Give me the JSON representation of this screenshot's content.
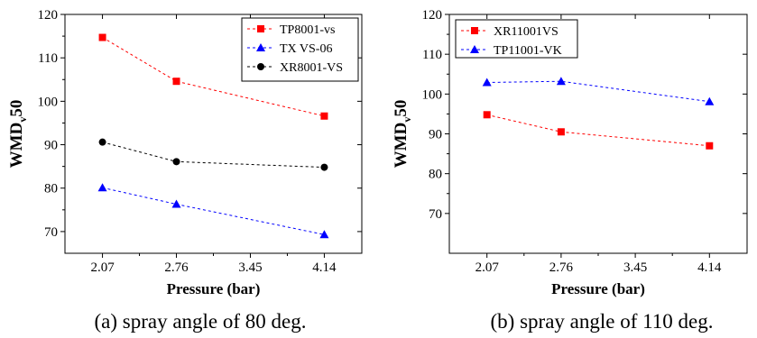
{
  "chart_data": [
    {
      "type": "line",
      "caption": "(a) spray angle of 80 deg.",
      "xlabel": "Pressure (bar)",
      "ylabel_main": "WMD",
      "ylabel_sub": "v",
      "ylabel_tail": "50",
      "xlim": [
        1.72,
        4.49
      ],
      "ylim": [
        65,
        120
      ],
      "x_ticks": [
        2.07,
        2.76,
        3.45,
        4.14
      ],
      "x_tick_labels": [
        "2.07",
        "2.76",
        "3.45",
        "4.14"
      ],
      "y_ticks": [
        70,
        80,
        90,
        100,
        110,
        120
      ],
      "y_tick_labels": [
        "70",
        "80",
        "90",
        "100",
        "110",
        "120"
      ],
      "legend_position": "top-right",
      "grid": false,
      "series": [
        {
          "name": "TP8001-vs",
          "color": "#ff0000",
          "marker": "square",
          "x": [
            2.07,
            2.76,
            4.14
          ],
          "values": [
            114.7,
            104.6,
            96.6
          ]
        },
        {
          "name": "TX VS-06",
          "color": "#0000ff",
          "marker": "triangle",
          "x": [
            2.07,
            2.76,
            4.14
          ],
          "values": [
            80.1,
            76.3,
            69.3
          ]
        },
        {
          "name": "XR8001-VS",
          "color": "#000000",
          "marker": "circle",
          "x": [
            2.07,
            2.76,
            4.14
          ],
          "values": [
            90.6,
            86.1,
            84.8
          ]
        }
      ]
    },
    {
      "type": "line",
      "caption": "(b) spray angle of 110 deg.",
      "xlabel": "Pressure (bar)",
      "ylabel_main": "WMD",
      "ylabel_sub": "v",
      "ylabel_tail": "50",
      "xlim": [
        1.72,
        4.49
      ],
      "ylim": [
        60,
        120
      ],
      "x_ticks": [
        2.07,
        2.76,
        3.45,
        4.14
      ],
      "x_tick_labels": [
        "2.07",
        "2.76",
        "3.45",
        "4.14"
      ],
      "y_ticks": [
        70,
        80,
        90,
        100,
        110,
        120
      ],
      "y_tick_labels": [
        "70",
        "80",
        "90",
        "100",
        "110",
        "120"
      ],
      "legend_position": "top-left",
      "grid": false,
      "series": [
        {
          "name": "XR11001VS",
          "color": "#ff0000",
          "marker": "square",
          "x": [
            2.07,
            2.76,
            4.14
          ],
          "values": [
            94.8,
            90.5,
            87.0
          ]
        },
        {
          "name": "TP11001-VK",
          "color": "#0000ff",
          "marker": "triangle",
          "x": [
            2.07,
            2.76,
            4.14
          ],
          "values": [
            102.9,
            103.2,
            98.1
          ]
        }
      ]
    }
  ]
}
